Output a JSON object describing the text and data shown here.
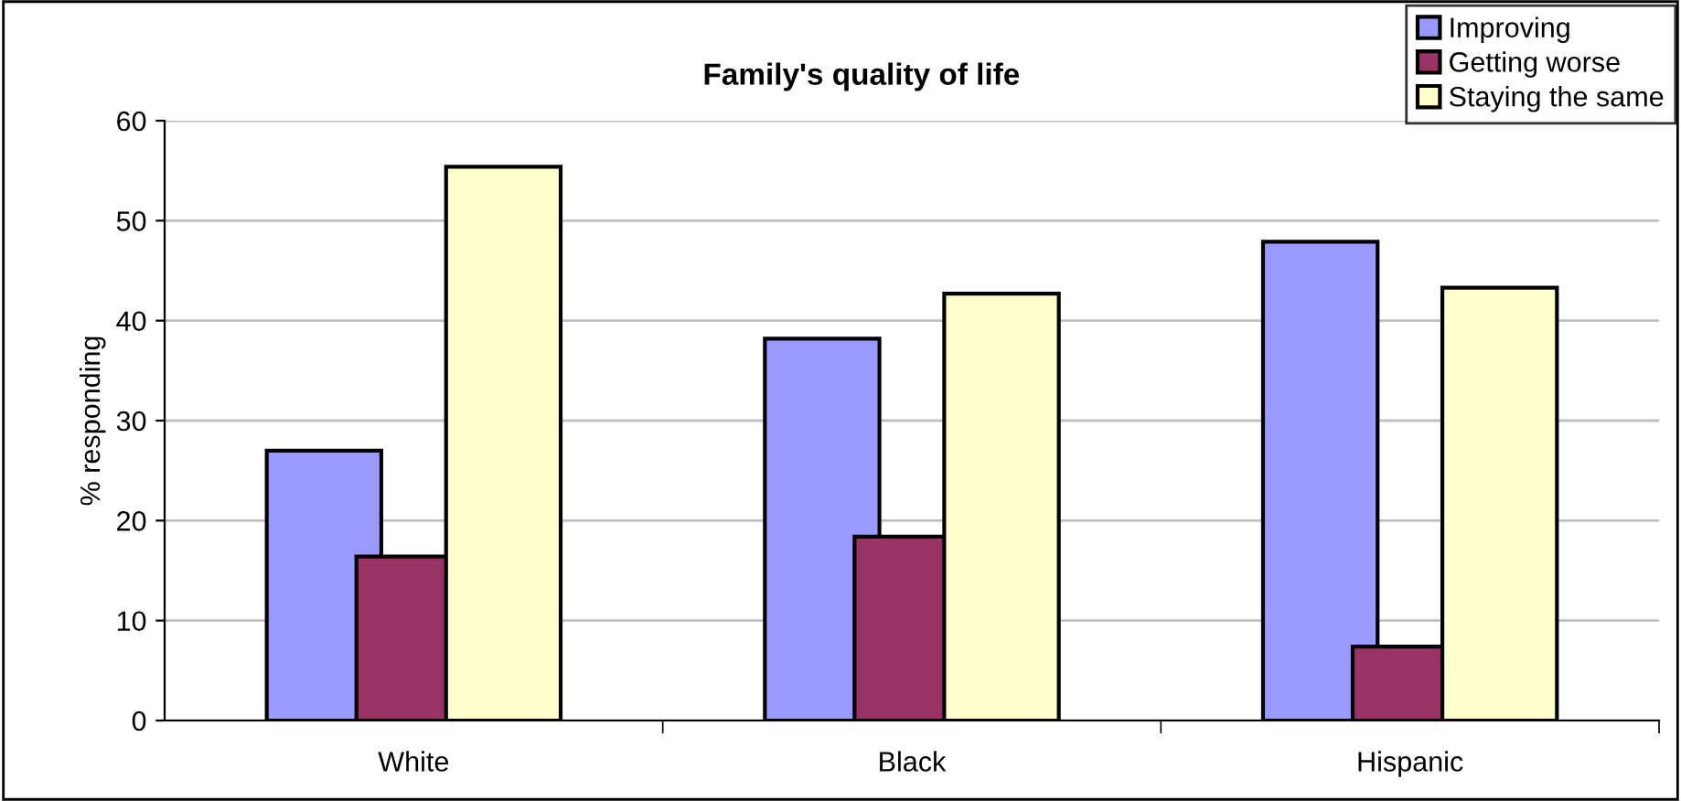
{
  "chart_data": {
    "type": "bar",
    "title": "Family's quality of life",
    "ylabel": "% responding",
    "categories": [
      "White",
      "Black",
      "Hispanic"
    ],
    "series": [
      {
        "name": "Improving",
        "color": "#9999ff",
        "values": [
          27,
          38.2,
          47.9
        ]
      },
      {
        "name": "Getting worse",
        "color": "#993366",
        "values": [
          16.4,
          18.4,
          7.4
        ]
      },
      {
        "name": "Staying the same",
        "color": "#ffffcc",
        "values": [
          55.4,
          42.7,
          43.3
        ]
      }
    ],
    "ylim": [
      0,
      60
    ],
    "yticks": [
      0,
      10,
      20,
      30,
      40,
      50,
      60
    ],
    "grid": "y",
    "legend": "top right"
  }
}
